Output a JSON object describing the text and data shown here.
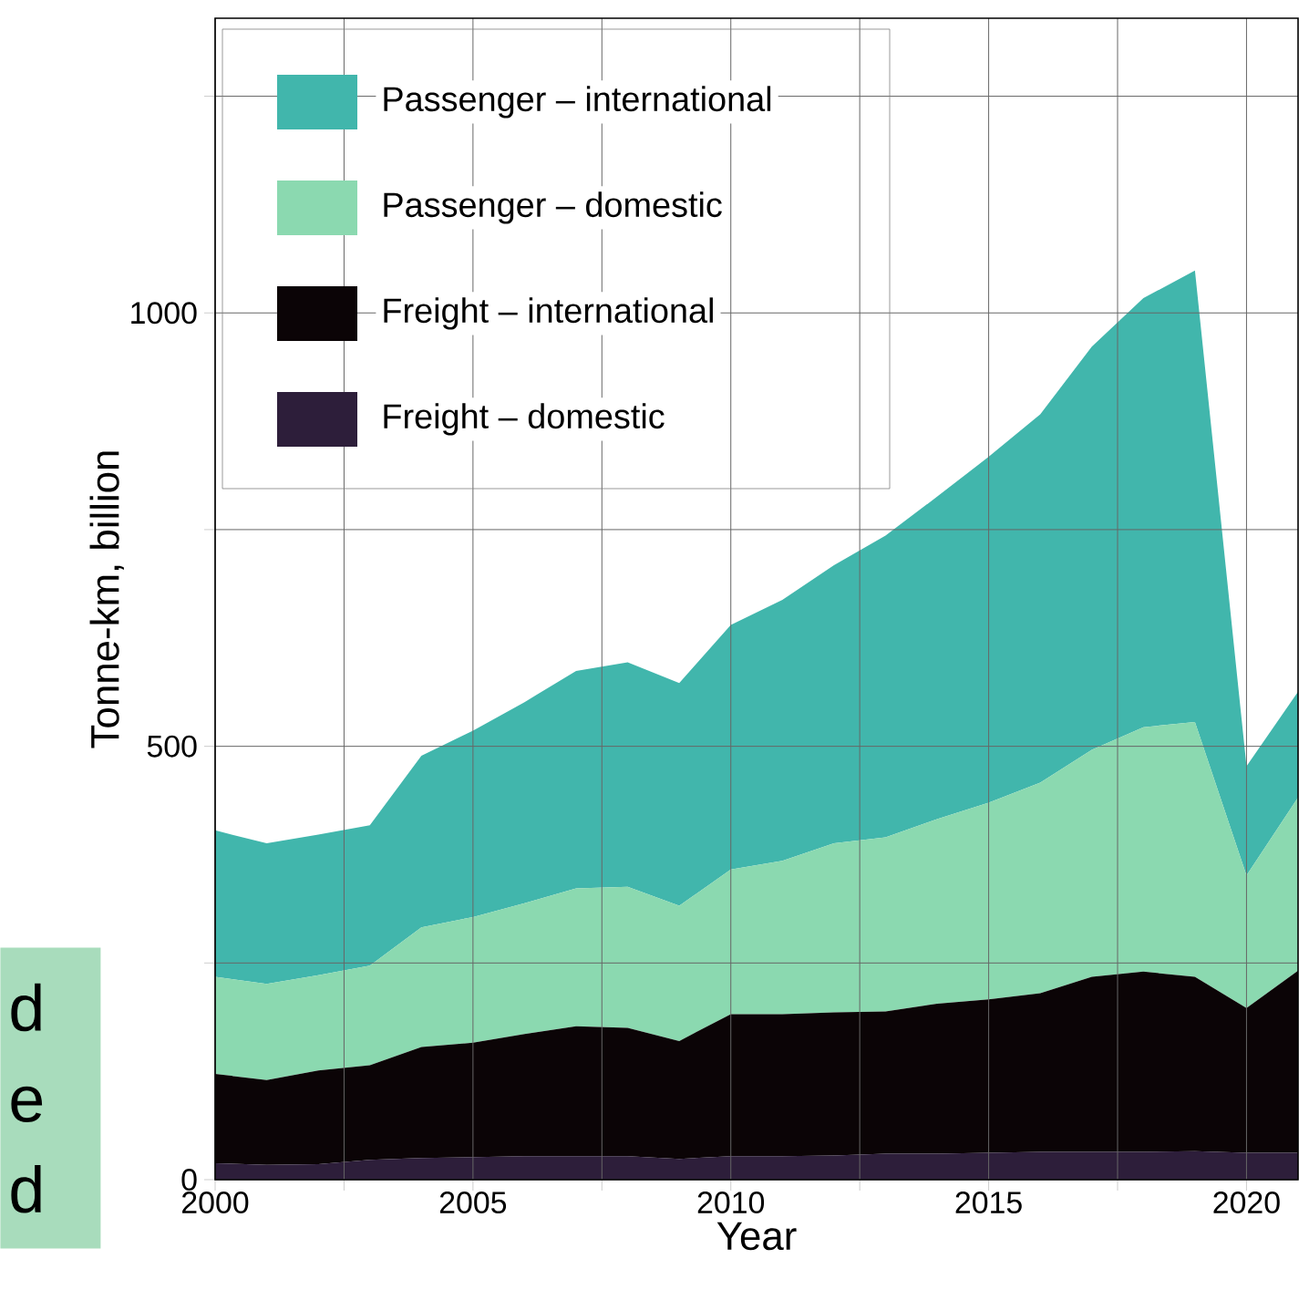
{
  "chart_data": {
    "type": "area",
    "stacked": true,
    "xlabel": "Year",
    "ylabel": "Tonne-km, billion",
    "x": [
      2000,
      2001,
      2002,
      2003,
      2004,
      2005,
      2006,
      2007,
      2008,
      2009,
      2010,
      2011,
      2012,
      2013,
      2014,
      2015,
      2016,
      2017,
      2018,
      2019,
      2020,
      2021
    ],
    "series": [
      {
        "name": "Freight – domestic",
        "color": "#2d1e3a",
        "values": [
          19,
          17,
          18,
          23,
          25,
          26,
          27,
          27,
          27,
          24,
          27,
          27,
          28,
          30,
          30,
          31,
          32,
          32,
          32,
          33,
          31,
          31
        ]
      },
      {
        "name": "Freight – international",
        "color": "#0b0406",
        "values": [
          103,
          98,
          108,
          109,
          128,
          132,
          141,
          150,
          148,
          136,
          164,
          164,
          165,
          164,
          173,
          177,
          183,
          202,
          208,
          201,
          167,
          210
        ]
      },
      {
        "name": "Passenger – domestic",
        "color": "#8bd9b0",
        "values": [
          112,
          111,
          110,
          115,
          138,
          145,
          151,
          159,
          163,
          156,
          167,
          177,
          195,
          201,
          213,
          227,
          243,
          262,
          282,
          294,
          153,
          200
        ]
      },
      {
        "name": "Passenger – international",
        "color": "#41b6ac",
        "values": [
          169,
          162,
          162,
          162,
          198,
          215,
          232,
          251,
          259,
          257,
          282,
          301,
          321,
          348,
          372,
          399,
          425,
          465,
          495,
          521,
          126,
          122
        ]
      }
    ],
    "xlim": [
      2000,
      2021
    ],
    "ylim": [
      0,
      1340
    ],
    "xticks": [
      2000,
      {
        "value": 2002.5,
        "label": null
      },
      2005,
      {
        "value": 2007.5,
        "label": null
      },
      2010,
      {
        "value": 2012.5,
        "label": null
      },
      2015,
      {
        "value": 2017.5,
        "label": null
      },
      2020
    ],
    "yticks": [
      0,
      {
        "value": 250,
        "label": null
      },
      500,
      {
        "value": 750,
        "label": null
      },
      1000,
      {
        "value": 1250,
        "label": null
      }
    ],
    "grid": true,
    "legend": "top left",
    "annotations": [
      "d",
      "e",
      "d"
    ]
  }
}
